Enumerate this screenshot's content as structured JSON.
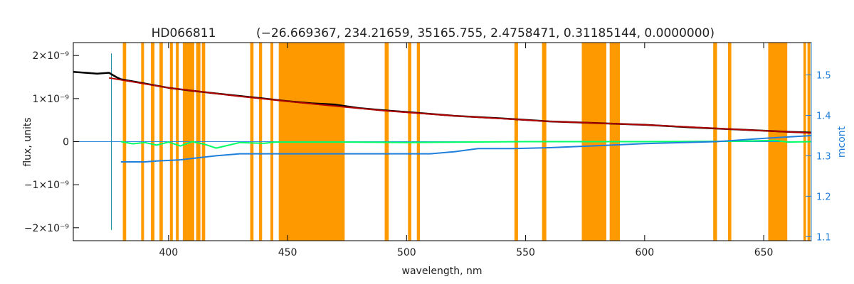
{
  "chart_data": {
    "type": "line",
    "title": "HD066811",
    "subtitle": "(−26.669367, 234.21659, 35165.755, 2.4758471, 0.31185144, 0.0000000)",
    "xlabel": "wavelength, nm",
    "ylabel": "flux, units",
    "y2label": "mcont",
    "xlim": [
      360,
      670
    ],
    "ylim": [
      -2.3e-09,
      2.3e-09
    ],
    "y2lim": [
      1.09,
      1.58
    ],
    "x_ticks": [
      400,
      450,
      500,
      550,
      600,
      650
    ],
    "x_tick_labels": [
      "400",
      "450",
      "500",
      "550",
      "600",
      "650"
    ],
    "y_ticks": [
      2e-09,
      1e-09,
      0,
      -1e-09,
      -2e-09
    ],
    "y_tick_labels": [
      "2×10⁻⁹",
      "1×10⁻⁹",
      "0",
      "−1×10⁻⁹",
      "−2×10⁻⁹"
    ],
    "y2_ticks": [
      1.1,
      1.2,
      1.3,
      1.4,
      1.5
    ],
    "y2_tick_labels": [
      "1.1",
      "1.2",
      "1.3",
      "1.4",
      "1.5"
    ],
    "grid": false,
    "masked_regions_nm": [
      [
        380.8,
        382.2
      ],
      [
        388.5,
        389.7
      ],
      [
        392.6,
        394.1
      ],
      [
        396.2,
        397.6
      ],
      [
        400.6,
        401.8
      ],
      [
        403.1,
        404.3
      ],
      [
        406.0,
        410.8
      ],
      [
        411.6,
        413.4
      ],
      [
        414.0,
        415.4
      ],
      [
        434.3,
        435.7
      ],
      [
        438.0,
        439.3
      ],
      [
        442.8,
        444.0
      ],
      [
        446.3,
        474.0
      ],
      [
        490.8,
        492.5
      ],
      [
        500.6,
        502.0
      ],
      [
        504.3,
        505.6
      ],
      [
        545.3,
        546.8
      ],
      [
        556.9,
        558.7
      ],
      [
        573.6,
        583.9
      ],
      [
        585.3,
        589.6
      ],
      [
        628.8,
        630.4
      ],
      [
        635.0,
        636.4
      ],
      [
        651.9,
        659.9
      ],
      [
        666.7,
        667.8
      ],
      [
        668.4,
        669.6
      ]
    ],
    "series": [
      {
        "name": "",
        "color": "#000000",
        "axis": "left",
        "x": [
          360,
          370,
          375,
          378,
          380,
          385,
          390,
          395,
          400,
          410,
          420,
          430,
          440,
          450,
          460,
          470,
          480,
          490,
          500,
          520,
          540,
          560,
          580,
          600,
          620,
          640,
          660,
          670
        ],
        "y": [
          1.62e-09,
          1.58e-09,
          1.6e-09,
          1.5e-09,
          1.45e-09,
          1.4e-09,
          1.35e-09,
          1.3e-09,
          1.25e-09,
          1.18e-09,
          1.12e-09,
          1.06e-09,
          1e-09,
          9.4e-10,
          8.9e-10,
          8.6e-10,
          7.8e-10,
          7.3e-10,
          6.9e-10,
          6e-10,
          5.4e-10,
          4.7e-10,
          4.3e-10,
          3.9e-10,
          3.3e-10,
          2.8e-10,
          2.3e-10,
          2.1e-10
        ]
      },
      {
        "name": "",
        "color": "#b00000",
        "axis": "left",
        "x": [
          375,
          400,
          430,
          460,
          490,
          520,
          560,
          600,
          640,
          670
        ],
        "y": [
          1.48e-09,
          1.25e-09,
          1.05e-09,
          8.8e-10,
          7.2e-10,
          6e-10,
          4.7e-10,
          3.9e-10,
          2.8e-10,
          2e-10
        ]
      },
      {
        "name": "",
        "color": "#00ff66",
        "axis": "left",
        "x": [
          380,
          385,
          390,
          395,
          400,
          405,
          410,
          415,
          420,
          430,
          440,
          445,
          475,
          500,
          550,
          600,
          640,
          655,
          660,
          670
        ],
        "y": [
          0,
          -5e-11,
          -2e-11,
          -8e-11,
          -1e-11,
          -1e-10,
          0,
          -6e-11,
          -1.5e-10,
          -2e-11,
          -4e-11,
          -1e-11,
          -1e-11,
          -2e-11,
          0,
          0,
          1e-11,
          3e-11,
          -1e-11,
          0
        ]
      },
      {
        "name": "",
        "color": "#1f7fdd",
        "axis": "right",
        "x": [
          380,
          390,
          395,
          405,
          420,
          430,
          446,
          474,
          510,
          520,
          530,
          545,
          560,
          580,
          600,
          630,
          650,
          670
        ],
        "y": [
          1.285,
          1.285,
          1.287,
          1.29,
          1.3,
          1.305,
          1.305,
          1.305,
          1.305,
          1.31,
          1.318,
          1.318,
          1.32,
          1.325,
          1.33,
          1.335,
          1.343,
          1.35
        ]
      }
    ],
    "marker_line": {
      "x": 376,
      "y_range": [
        -2.05e-09,
        2.05e-09
      ],
      "color": "#1a8aa0"
    },
    "zero_line": {
      "y": 0,
      "color": "#2a8ae0"
    }
  }
}
